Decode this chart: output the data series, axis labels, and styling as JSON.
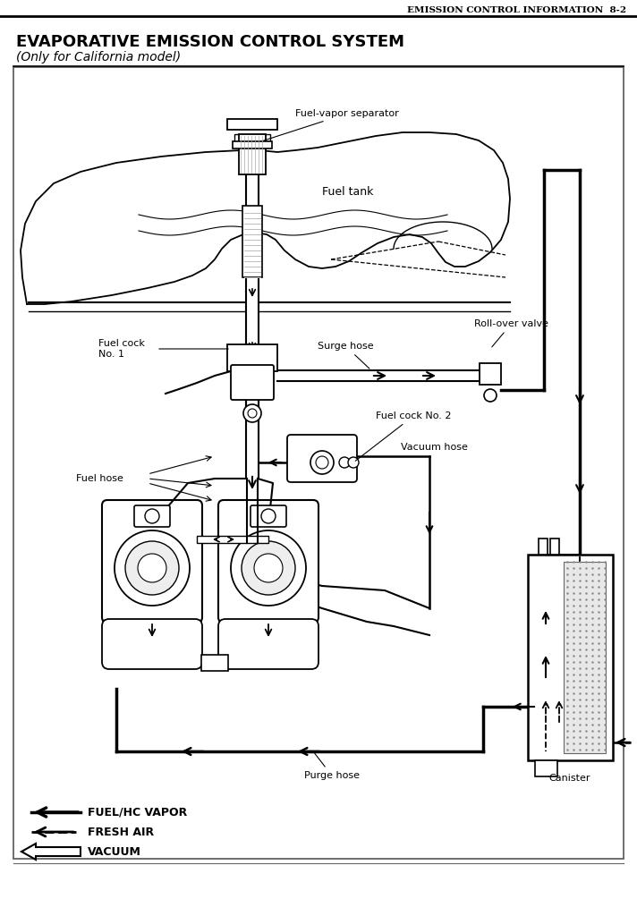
{
  "page_header": "EMISSION CONTROL INFORMATION  8-2",
  "title_line1": "EVAPORATIVE EMISSION CONTROL SYSTEM",
  "title_line2": "(Only for California model)",
  "labels": {
    "fuel_vapor_separator": "Fuel-vapor separator",
    "fuel_tank": "Fuel tank",
    "roll_over_valve": "Roll-over valve",
    "surge_hose": "Surge hose",
    "fuel_cock_1": "Fuel cock\nNo. 1",
    "fuel_cock_2": "Fuel cock No. 2",
    "fuel_hose": "Fuel hose",
    "vacuum_hose": "Vacuum hose",
    "purge_hose": "Purge hose",
    "canister": "Canister"
  },
  "legend": {
    "fuel_hc_vapor": "FUEL/HC VAPOR",
    "fresh_air": "FRESH AIR",
    "vacuum": "VACUUM"
  },
  "bg_color": "#ffffff",
  "line_color": "#000000"
}
